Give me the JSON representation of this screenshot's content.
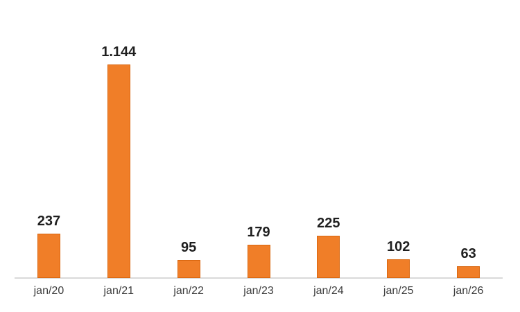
{
  "chart_data": {
    "type": "bar",
    "title": "",
    "xlabel": "",
    "ylabel": "",
    "categories": [
      "jan/20",
      "jan/21",
      "jan/22",
      "jan/23",
      "jan/24",
      "jan/25",
      "jan/26"
    ],
    "values": [
      237,
      1144,
      95,
      179,
      225,
      102,
      63
    ],
    "value_labels": [
      "237",
      "1.144",
      "95",
      "179",
      "225",
      "102",
      "63"
    ],
    "ylim": [
      0,
      1144
    ],
    "grid": false,
    "legend": false,
    "y_axis_visible": false,
    "number_format": "thousands separator is a dot",
    "colors": {
      "bar_fill": "#F07E28",
      "bar_border": "#D9660E",
      "axis_line": "#D9D9D9",
      "value_label": "#1F1F1F",
      "category_label": "#3D3D3D",
      "background": "#FFFFFF"
    }
  }
}
